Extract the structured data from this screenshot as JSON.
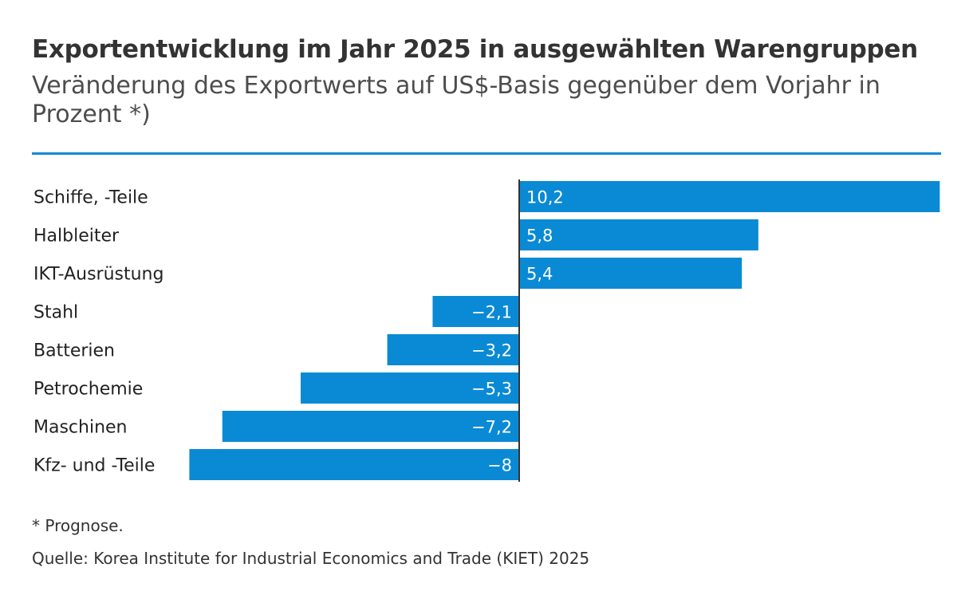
{
  "colors": {
    "bar": "#0a8ad4",
    "rule": "#0a8ad4",
    "axis": "#333333",
    "label_inside": "#ffffff"
  },
  "footnote": "* Prognose.",
  "source": "Quelle: Korea Institute for Industrial Economics and Trade (KIET) 2025",
  "chart_data": {
    "type": "bar",
    "orientation": "horizontal",
    "title": "Exportentwicklung im Jahr 2025 in ausgewählten Warengruppen",
    "subtitle": "Veränderung des Exportwerts auf US$-Basis gegenüber dem Vorjahr in Prozent *)",
    "categories": [
      "Schiffe, -Teile",
      "Halbleiter",
      "IKT-Ausrüstung",
      "Stahl",
      "Batterien",
      "Petrochemie",
      "Maschinen",
      "Kfz- und -Teile"
    ],
    "values": [
      10.2,
      5.8,
      5.4,
      -2.1,
      -3.2,
      -5.3,
      -7.2,
      -8
    ],
    "value_labels": [
      "10,2",
      "5,8",
      "5,4",
      "−2,1",
      "−3,2",
      "−5,3",
      "−7,2",
      "−8"
    ],
    "xlim": [
      -8,
      10.2
    ],
    "grid": false,
    "legend": "none"
  }
}
